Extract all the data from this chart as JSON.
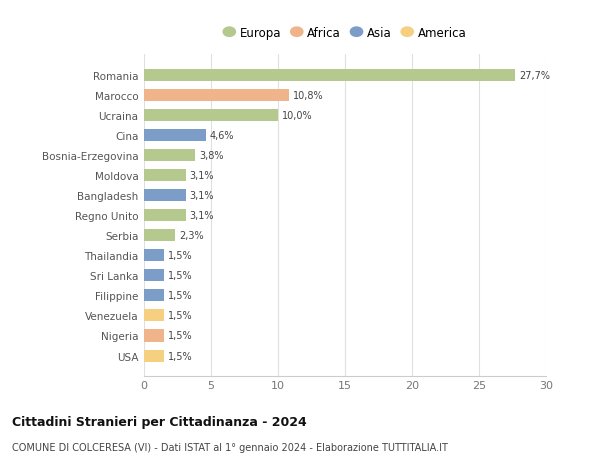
{
  "countries": [
    "Romania",
    "Marocco",
    "Ucraina",
    "Cina",
    "Bosnia-Erzegovina",
    "Moldova",
    "Bangladesh",
    "Regno Unito",
    "Serbia",
    "Thailandia",
    "Sri Lanka",
    "Filippine",
    "Venezuela",
    "Nigeria",
    "USA"
  ],
  "values": [
    27.7,
    10.8,
    10.0,
    4.6,
    3.8,
    3.1,
    3.1,
    3.1,
    2.3,
    1.5,
    1.5,
    1.5,
    1.5,
    1.5,
    1.5
  ],
  "labels": [
    "27,7%",
    "10,8%",
    "10,0%",
    "4,6%",
    "3,8%",
    "3,1%",
    "3,1%",
    "3,1%",
    "2,3%",
    "1,5%",
    "1,5%",
    "1,5%",
    "1,5%",
    "1,5%",
    "1,5%"
  ],
  "continents": [
    "Europa",
    "Africa",
    "Europa",
    "Asia",
    "Europa",
    "Europa",
    "Asia",
    "Europa",
    "Europa",
    "Asia",
    "Asia",
    "Asia",
    "America",
    "Africa",
    "America"
  ],
  "colors": {
    "Europa": "#b5c98e",
    "Africa": "#f0b48a",
    "Asia": "#7b9dc7",
    "America": "#f5d080"
  },
  "legend_order": [
    "Europa",
    "Africa",
    "Asia",
    "America"
  ],
  "xlim": [
    0,
    30
  ],
  "xticks": [
    0,
    5,
    10,
    15,
    20,
    25,
    30
  ],
  "title": "Cittadini Stranieri per Cittadinanza - 2024",
  "subtitle": "COMUNE DI COLCERESA (VI) - Dati ISTAT al 1° gennaio 2024 - Elaborazione TUTTITALIA.IT",
  "bg_color": "#ffffff",
  "grid_color": "#e0e0e0",
  "bar_height": 0.6
}
